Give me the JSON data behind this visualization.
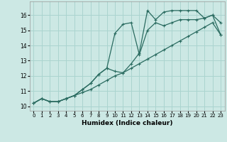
{
  "xlabel": "Humidex (Indice chaleur)",
  "background_color": "#cce8e4",
  "grid_color": "#aad4cf",
  "line_color": "#2a6b60",
  "xlim": [
    -0.5,
    23.5
  ],
  "ylim": [
    9.7,
    16.9
  ],
  "xticks": [
    0,
    1,
    2,
    3,
    4,
    5,
    6,
    7,
    8,
    9,
    10,
    11,
    12,
    13,
    14,
    15,
    16,
    17,
    18,
    19,
    20,
    21,
    22,
    23
  ],
  "yticks": [
    10,
    11,
    12,
    13,
    14,
    15,
    16
  ],
  "line1_x": [
    0,
    1,
    2,
    3,
    4,
    5,
    6,
    7,
    8,
    9,
    10,
    11,
    12,
    13,
    14,
    15,
    16,
    17,
    18,
    19,
    20,
    21,
    22,
    23
  ],
  "line1_y": [
    10.2,
    10.5,
    10.3,
    10.3,
    10.5,
    10.7,
    11.1,
    11.5,
    12.1,
    12.5,
    14.8,
    15.4,
    15.5,
    13.4,
    15.0,
    15.5,
    15.3,
    15.5,
    15.7,
    15.7,
    15.7,
    15.8,
    16.0,
    15.5
  ],
  "line2_x": [
    0,
    1,
    2,
    3,
    4,
    5,
    6,
    7,
    8,
    9,
    10,
    11,
    12,
    13,
    14,
    15,
    16,
    17,
    18,
    19,
    20,
    21,
    22,
    23
  ],
  "line2_y": [
    10.2,
    10.5,
    10.3,
    10.3,
    10.5,
    10.7,
    11.1,
    11.5,
    12.1,
    12.5,
    12.3,
    12.2,
    12.8,
    13.5,
    16.3,
    15.7,
    16.2,
    16.3,
    16.3,
    16.3,
    16.3,
    15.8,
    16.0,
    14.7
  ],
  "line3_x": [
    0,
    1,
    2,
    3,
    4,
    5,
    6,
    7,
    8,
    9,
    10,
    11,
    12,
    13,
    14,
    15,
    16,
    17,
    18,
    19,
    20,
    21,
    22,
    23
  ],
  "line3_y": [
    10.2,
    10.5,
    10.3,
    10.3,
    10.5,
    10.7,
    10.9,
    11.1,
    11.4,
    11.7,
    12.0,
    12.2,
    12.5,
    12.8,
    13.1,
    13.4,
    13.7,
    14.0,
    14.3,
    14.6,
    14.9,
    15.2,
    15.5,
    14.7
  ]
}
